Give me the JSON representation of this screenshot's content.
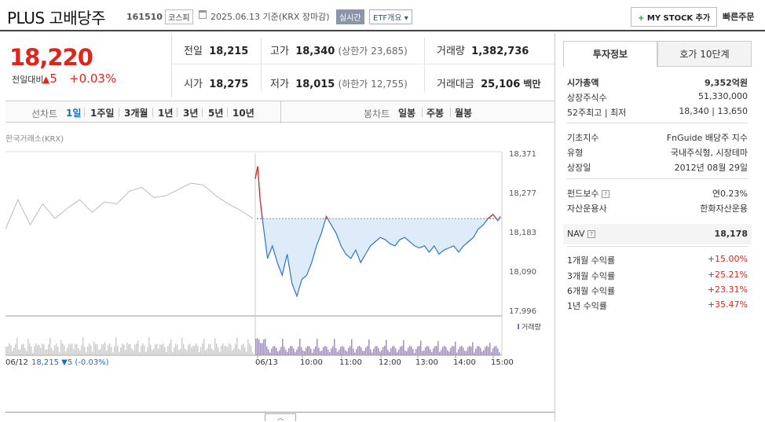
{
  "header": {
    "title": "PLUS 고배당주",
    "code": "161510",
    "market": "코스피",
    "date_text": "2025.06.13 기준(KRX 장마감)",
    "realtime_label": "실시간",
    "etf_label": "ETF개요",
    "mystock_label": "MY STOCK 추가",
    "quick_order_label": "빠른주문"
  },
  "quote": {
    "price": "18,220",
    "change_label": "전일대비",
    "change_value": "5",
    "change_pct": "+0.03%"
  },
  "summary": {
    "prev_label": "전일",
    "prev": "18,215",
    "high_label": "고가",
    "high": "18,340",
    "upper_limit": "(상한가 23,685)",
    "volume_label": "거래량",
    "volume": "1,382,736",
    "open_label": "시가",
    "open": "18,275",
    "low_label": "저가",
    "low": "18,015",
    "lower_limit": "(하한가 12,755)",
    "amount_label": "거래대금",
    "amount": "25,106",
    "amount_unit": "백만"
  },
  "periods": {
    "line_label": "선차트",
    "items": [
      "1일",
      "1주일",
      "3개월",
      "1년",
      "3년",
      "5년",
      "10년"
    ],
    "active": "1일",
    "candle_label": "봉차트",
    "candle_items": [
      "일봉",
      "주봉",
      "월봉"
    ]
  },
  "chart_data": {
    "type": "line",
    "source_label": "한국거래소(KRX)",
    "y_ticks": [
      "18,371",
      "18,277",
      "18,183",
      "18,090",
      "17,996"
    ],
    "ylim": [
      17996,
      18371
    ],
    "baseline": 18215,
    "x_ticks": [
      "06/13",
      "10:00",
      "11:00",
      "12:00",
      "13:00",
      "14:00",
      "15:00"
    ],
    "volume_legend": "거래량",
    "prev_day_label": "06/12",
    "prev_day_close": "18,215",
    "prev_day_change": "▼5 (-0.03%)",
    "prev_day_x": [
      0,
      5,
      10,
      15,
      20,
      25,
      30,
      35,
      40,
      45,
      50,
      55,
      60,
      65,
      70,
      75,
      80,
      85,
      90,
      95,
      100
    ],
    "prev_day_y": [
      18190,
      18260,
      18200,
      18250,
      18215,
      18240,
      18260,
      18230,
      18255,
      18250,
      18280,
      18290,
      18265,
      18270,
      18285,
      18300,
      18295,
      18270,
      18250,
      18235,
      18215
    ],
    "series": [
      {
        "x": [
          0,
          1,
          2,
          3,
          5,
          7,
          9,
          11,
          13,
          15,
          17,
          19,
          21,
          23,
          25,
          27,
          29,
          31,
          33,
          35,
          37,
          39,
          41,
          43,
          45,
          47,
          49,
          51,
          53,
          55,
          57,
          59,
          61,
          63,
          65,
          67,
          69,
          71,
          73,
          75,
          77,
          79,
          81,
          83,
          85,
          87,
          89,
          91,
          93,
          95,
          97,
          99,
          100
        ],
        "y": [
          18310,
          18340,
          18260,
          18210,
          18120,
          18150,
          18110,
          18080,
          18130,
          18060,
          18030,
          18070,
          18080,
          18110,
          18150,
          18180,
          18220,
          18200,
          18180,
          18150,
          18130,
          18120,
          18140,
          18110,
          18130,
          18150,
          18160,
          18170,
          18165,
          18155,
          18150,
          18165,
          18170,
          18160,
          18150,
          18145,
          18150,
          18135,
          18150,
          18130,
          18140,
          18145,
          18150,
          18135,
          18150,
          18160,
          18170,
          18190,
          18200,
          18215,
          18225,
          18210,
          18220
        ]
      }
    ]
  },
  "sidebar": {
    "tab_invest": "투자정보",
    "tab_hoga": "호가 10단계",
    "rows1": [
      {
        "label": "시가총액",
        "value": "9,352억원"
      },
      {
        "label": "상장주식수",
        "value": "51,330,000"
      },
      {
        "label": "52주최고 | 최저",
        "value": "18,340 | 13,650"
      }
    ],
    "rows2": [
      {
        "label": "기초지수",
        "value": "FnGuide 배당주 지수"
      },
      {
        "label": "유형",
        "value": "국내주식형, 시장테마"
      },
      {
        "label": "상장일",
        "value": "2012년 08월 29일"
      }
    ],
    "rows3": [
      {
        "label": "펀드보수",
        "value": "연0.23%"
      },
      {
        "label": "자산운용사",
        "value": "한화자산운용"
      }
    ],
    "nav_label": "NAV",
    "nav_value": "18,178",
    "returns": [
      {
        "label": "1개월 수익률",
        "value": "+15.00%"
      },
      {
        "label": "3개월 수익률",
        "value": "+25.21%"
      },
      {
        "label": "6개월 수익률",
        "value": "+23.31%"
      },
      {
        "label": "1년 수익률",
        "value": "+35.47%"
      }
    ]
  }
}
